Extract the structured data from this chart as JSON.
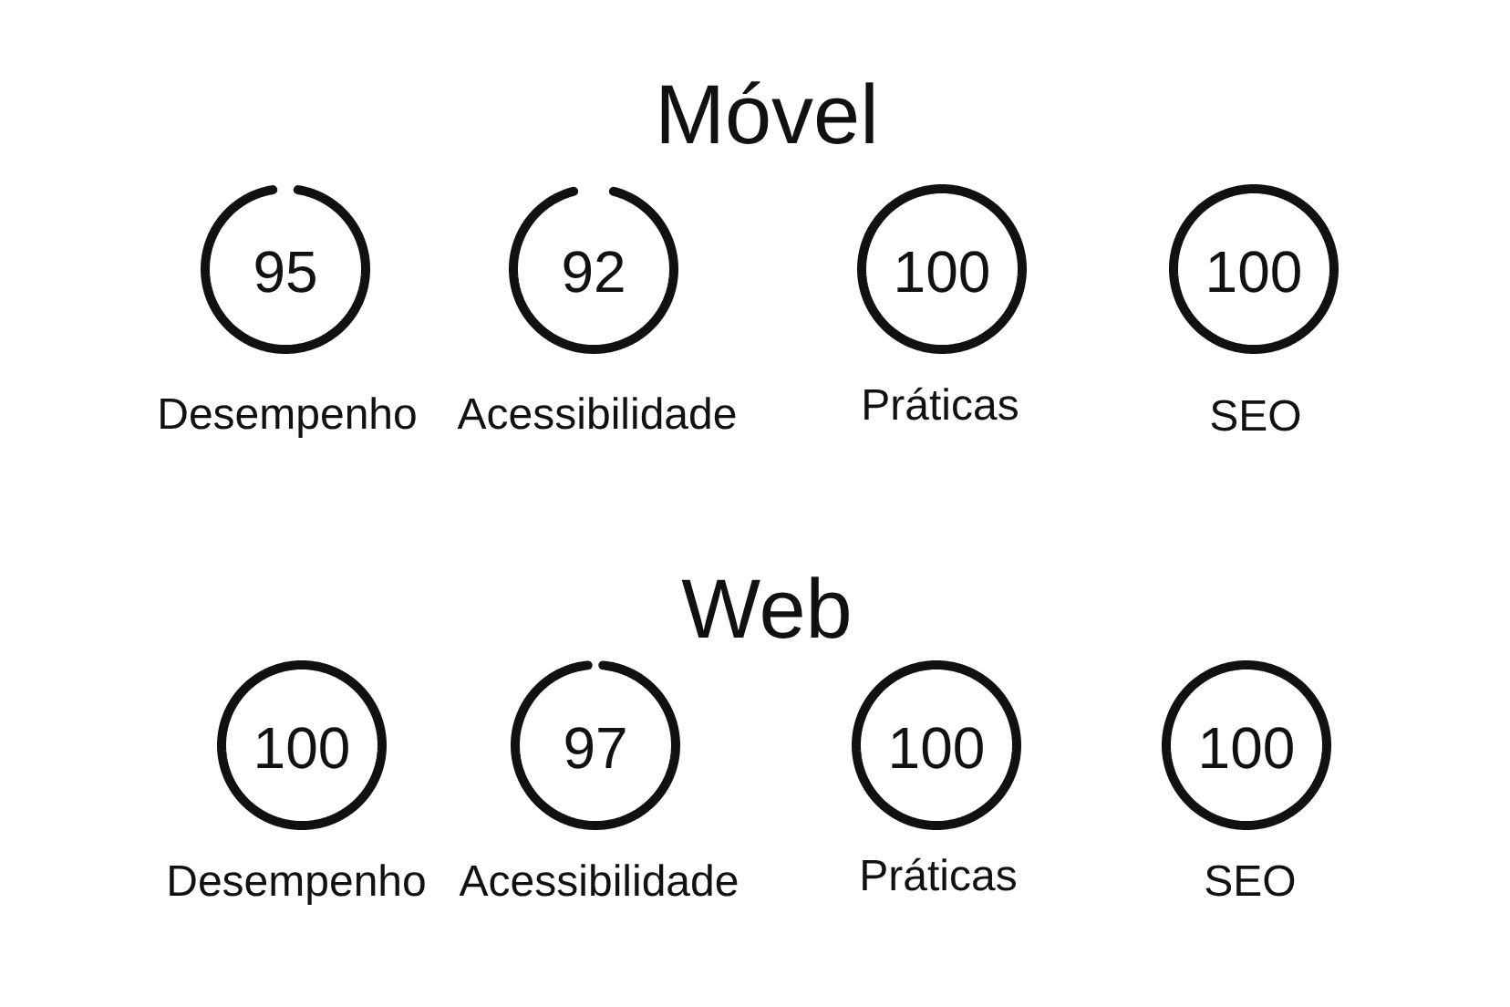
{
  "chart_data": [
    {
      "type": "other",
      "title": "Móvel",
      "categories": [
        "Desempenho",
        "Acessibilidade",
        "Práticas",
        "SEO"
      ],
      "values": [
        95,
        92,
        100,
        100
      ],
      "data_labels": true,
      "colors": [
        "#111111",
        "#111111",
        "#111111",
        "#111111"
      ]
    },
    {
      "type": "other",
      "title": "Web",
      "categories": [
        "Desempenho",
        "Acessibilidade",
        "Práticas",
        "SEO"
      ],
      "values": [
        100,
        97,
        100,
        100
      ],
      "data_labels": true,
      "colors": [
        "#111111",
        "#111111",
        "#111111",
        "#111111"
      ]
    }
  ]
}
